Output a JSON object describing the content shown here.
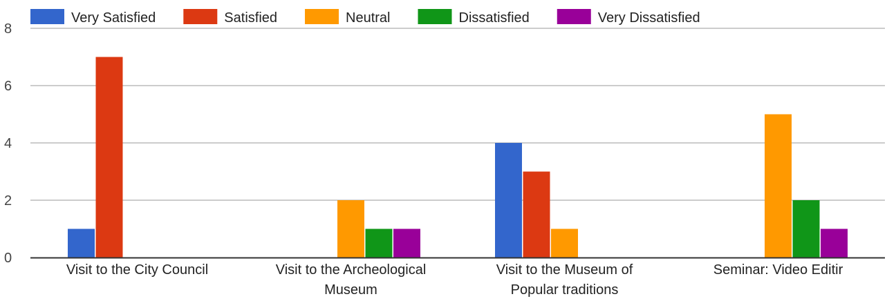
{
  "chart_data": {
    "type": "bar",
    "title": "",
    "xlabel": "",
    "ylabel": "",
    "ylim": [
      0,
      8
    ],
    "yticks": [
      0,
      2,
      4,
      6,
      8
    ],
    "grid": true,
    "legend_position": "top",
    "categories": [
      [
        "Visit to the City Council"
      ],
      [
        "Visit to the Archeological",
        "Museum"
      ],
      [
        "Visit to the Museum of",
        "Popular traditions"
      ],
      [
        "Seminar: Video Editir"
      ]
    ],
    "series": [
      {
        "name": "Very Satisfied",
        "color": "#3366cc",
        "values": [
          1,
          0,
          4,
          0
        ]
      },
      {
        "name": "Satisfied",
        "color": "#dc3912",
        "values": [
          7,
          0,
          3,
          0
        ]
      },
      {
        "name": "Neutral",
        "color": "#ff9900",
        "values": [
          0,
          2,
          1,
          5
        ]
      },
      {
        "name": "Dissatisfied",
        "color": "#109618",
        "values": [
          0,
          1,
          0,
          2
        ]
      },
      {
        "name": "Very Dissatisfied",
        "color": "#990099",
        "values": [
          0,
          1,
          0,
          1
        ]
      }
    ]
  }
}
